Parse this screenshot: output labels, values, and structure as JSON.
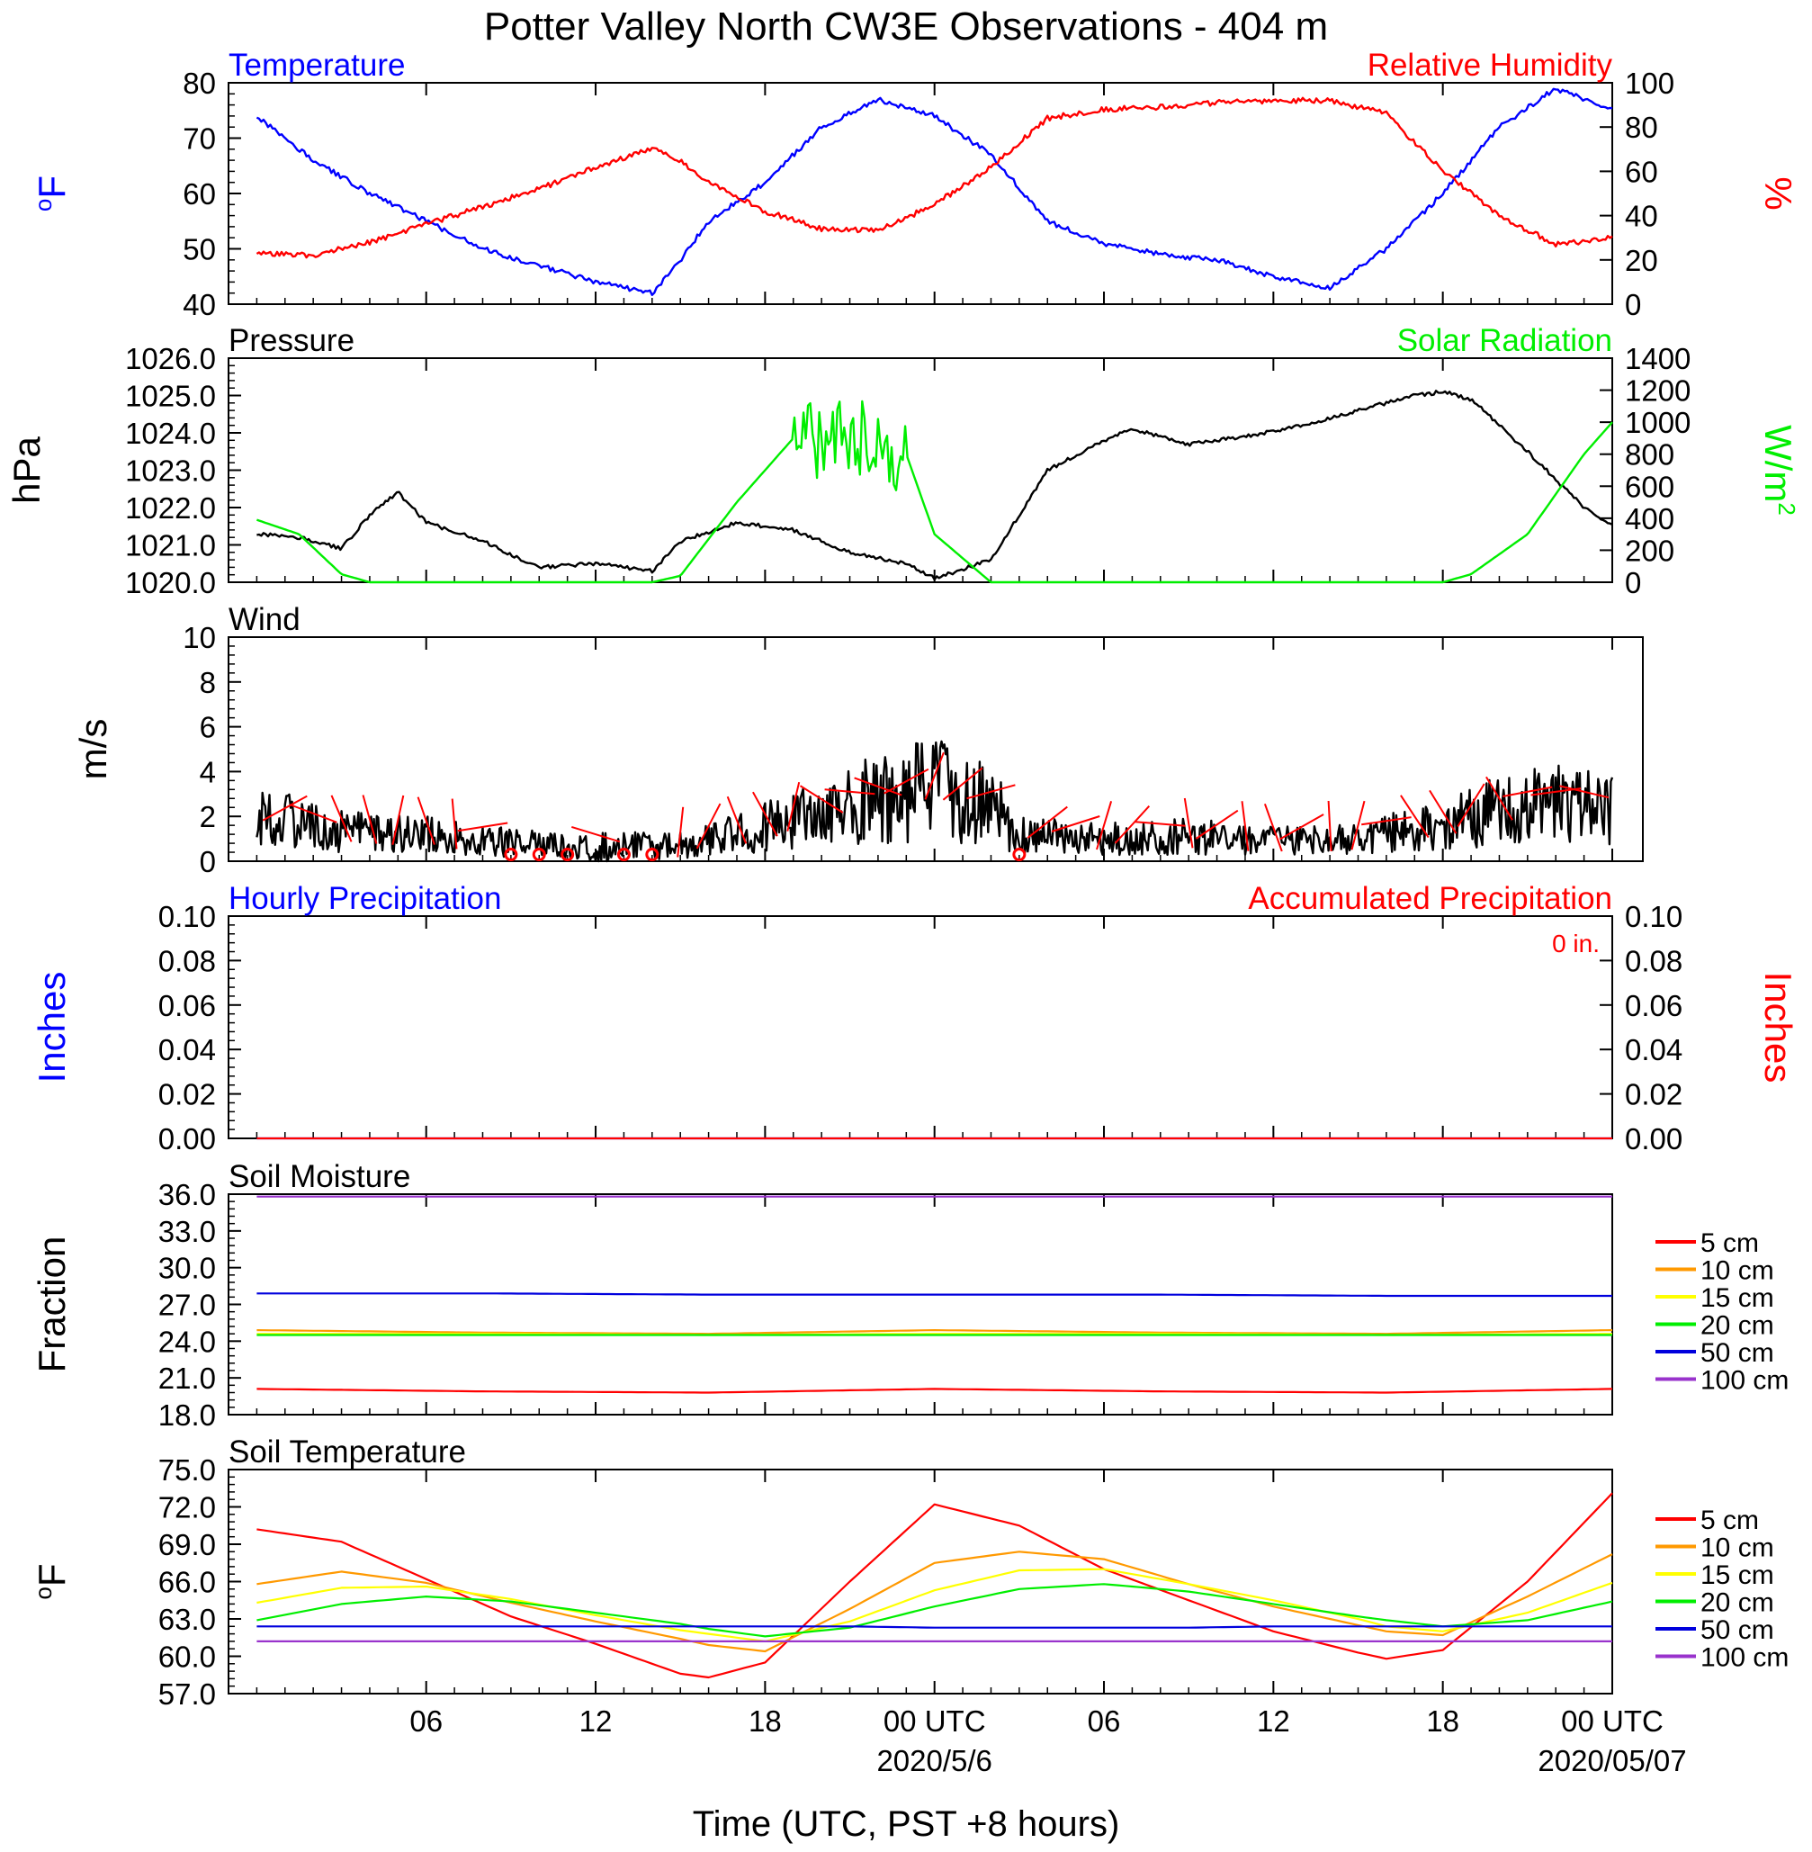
{
  "title": "Potter Valley North CW3E Observations - 404 m",
  "xlabel": "Time (UTC, PST +8 hours)",
  "x_ticks": [
    {
      "hour": 6,
      "label": "06",
      "date": ""
    },
    {
      "hour": 12,
      "label": "12",
      "date": ""
    },
    {
      "hour": 18,
      "label": "18",
      "date": ""
    },
    {
      "hour": 24,
      "label": "00 UTC",
      "date": "2020/5/6"
    },
    {
      "hour": 30,
      "label": "06",
      "date": ""
    },
    {
      "hour": 36,
      "label": "12",
      "date": ""
    },
    {
      "hour": 42,
      "label": "18",
      "date": ""
    },
    {
      "hour": 48,
      "label": "00 UTC",
      "date": "2020/05/07"
    }
  ],
  "colors": {
    "temperature": "#0000ff",
    "humidity": "#ff0000",
    "pressure": "#000000",
    "solar": "#00ee00",
    "wind": "#000000",
    "barbs": "#ff0000",
    "precip_hourly": "#0000ff",
    "precip_accum": "#ff0000",
    "d5": "#ff0000",
    "d10": "#ff9900",
    "d15": "#ffff00",
    "d20": "#00ee00",
    "d50": "#0000dd",
    "d100": "#9933cc"
  },
  "legend": [
    "5 cm",
    "10 cm",
    "15 cm",
    "20 cm",
    "50 cm",
    "100 cm"
  ],
  "chart_data": [
    {
      "type": "line",
      "title_left": "Temperature",
      "title_right": "Relative Humidity",
      "ylabel_left": "oF",
      "ylabel_right": "%",
      "ylim_left": [
        40,
        80
      ],
      "ylim_right": [
        0,
        100
      ],
      "yticks_left": [
        "40",
        "50",
        "60",
        "70",
        "80"
      ],
      "yticks_right": [
        "0",
        "20",
        "40",
        "60",
        "80",
        "100"
      ],
      "x_hours": [
        0,
        2,
        4,
        6,
        8,
        10,
        12,
        14,
        15,
        16,
        18,
        20,
        22,
        24,
        26,
        28,
        30,
        32,
        34,
        36,
        38,
        40,
        42,
        44,
        46,
        48
      ],
      "series": [
        {
          "name": "Temperature",
          "axis": "left",
          "values": [
            74,
            66,
            60,
            55,
            50,
            47,
            44,
            42,
            48,
            55,
            62,
            72,
            77,
            74,
            67,
            55,
            51,
            49,
            48,
            45,
            43,
            50,
            60,
            72,
            79,
            75
          ]
        },
        {
          "name": "Relative Humidity",
          "axis": "right",
          "values": [
            23,
            22,
            28,
            36,
            44,
            52,
            62,
            70,
            65,
            55,
            42,
            34,
            33,
            45,
            62,
            84,
            88,
            89,
            91,
            92,
            92,
            86,
            60,
            40,
            27,
            30
          ]
        }
      ]
    },
    {
      "type": "line",
      "title_left": "Pressure",
      "title_right": "Solar Radiation",
      "ylabel_left": "hPa",
      "ylabel_right": "W/m2",
      "ylim_left": [
        1020.0,
        1026.0
      ],
      "ylim_right": [
        0,
        1400
      ],
      "yticks_left": [
        "1020.0",
        "1021.0",
        "1022.0",
        "1023.0",
        "1024.0",
        "1025.0",
        "1026.0"
      ],
      "yticks_right": [
        "0",
        "200",
        "400",
        "600",
        "800",
        "1000",
        "1200",
        "1400"
      ],
      "x_hours": [
        0,
        1.5,
        3,
        4,
        5,
        6,
        8,
        10,
        12,
        14,
        15,
        17,
        19,
        21,
        23,
        24,
        26,
        28,
        30,
        31,
        33,
        35,
        37,
        39,
        41,
        42,
        43,
        45,
        47,
        48
      ],
      "series": [
        {
          "name": "Pressure",
          "axis": "left",
          "values": [
            1021.3,
            1021.2,
            1020.9,
            1021.8,
            1022.4,
            1021.6,
            1021.1,
            1020.4,
            1020.5,
            1020.3,
            1021.1,
            1021.6,
            1021.4,
            1020.8,
            1020.5,
            1020.1,
            1020.6,
            1023.0,
            1023.8,
            1024.1,
            1023.7,
            1023.9,
            1024.2,
            1024.6,
            1025.0,
            1025.1,
            1024.9,
            1023.5,
            1022.0,
            1021.5
          ]
        },
        {
          "name": "Solar Radiation",
          "axis": "right",
          "values": [
            390,
            300,
            50,
            0,
            0,
            0,
            0,
            0,
            0,
            0,
            40,
            500,
            900,
            1000,
            800,
            300,
            0,
            0,
            0,
            0,
            0,
            0,
            0,
            0,
            0,
            0,
            50,
            300,
            800,
            1000
          ]
        }
      ]
    },
    {
      "type": "line",
      "title_left": "Wind",
      "ylabel_left": "m/s",
      "ylim_left": [
        0,
        10
      ],
      "yticks_left": [
        "0",
        "2",
        "4",
        "6",
        "8",
        "10"
      ],
      "x_hours": [
        0,
        3,
        6,
        9,
        12,
        15,
        18,
        21,
        24,
        26,
        27,
        30,
        33,
        36,
        39,
        42,
        45,
        48
      ],
      "series": [
        {
          "name": "Wind",
          "axis": "left",
          "values": [
            2.0,
            1.3,
            1.2,
            0.8,
            0.6,
            0.7,
            1.5,
            2.5,
            3.2,
            2.5,
            1.2,
            1.0,
            1.1,
            0.9,
            1.0,
            1.6,
            2.5,
            2.5
          ]
        }
      ],
      "calm_hours": [
        9,
        10,
        11,
        13,
        14,
        27
      ]
    },
    {
      "type": "line",
      "title_left": "Hourly Precipitation",
      "title_right": "Accumulated Precipitation",
      "annotation": "0 in.",
      "ylabel_left": "Inches",
      "ylabel_right": "Inches",
      "ylim_left": [
        0,
        0.1
      ],
      "ylim_right": [
        0,
        0.1
      ],
      "yticks_left": [
        "0.00",
        "0.02",
        "0.04",
        "0.06",
        "0.08",
        "0.10"
      ],
      "yticks_right": [
        "0.00",
        "0.02",
        "0.04",
        "0.06",
        "0.08",
        "0.10"
      ],
      "x_hours": [
        0,
        48
      ],
      "series": [
        {
          "name": "Hourly Precipitation",
          "axis": "left",
          "values": [
            0,
            0
          ]
        },
        {
          "name": "Accumulated Precipitation",
          "axis": "right",
          "values": [
            0,
            0
          ]
        }
      ]
    },
    {
      "type": "line",
      "title_left": "Soil Moisture",
      "ylabel_left": "Fraction",
      "ylim_left": [
        18.0,
        36.0
      ],
      "yticks_left": [
        "18.0",
        "21.0",
        "24.0",
        "27.0",
        "30.0",
        "33.0",
        "36.0"
      ],
      "x_hours": [
        0,
        8,
        16,
        24,
        32,
        40,
        48
      ],
      "series": [
        {
          "name": "5 cm",
          "axis": "left",
          "values": [
            20.1,
            19.9,
            19.8,
            20.1,
            19.9,
            19.8,
            20.1
          ]
        },
        {
          "name": "10 cm",
          "axis": "left",
          "values": [
            24.9,
            24.7,
            24.6,
            24.9,
            24.7,
            24.6,
            24.9
          ]
        },
        {
          "name": "15 cm",
          "axis": "left",
          "values": [
            24.6,
            24.6,
            24.5,
            24.6,
            24.6,
            24.5,
            24.6
          ]
        },
        {
          "name": "20 cm",
          "axis": "left",
          "values": [
            24.5,
            24.5,
            24.5,
            24.5,
            24.5,
            24.5,
            24.5
          ]
        },
        {
          "name": "50 cm",
          "axis": "left",
          "values": [
            27.9,
            27.9,
            27.8,
            27.8,
            27.8,
            27.7,
            27.7
          ]
        },
        {
          "name": "100 cm",
          "axis": "left",
          "values": [
            35.8,
            35.8,
            35.8,
            35.8,
            35.8,
            35.8,
            35.8
          ]
        }
      ]
    },
    {
      "type": "line",
      "title_left": "Soil Temperature",
      "ylabel_left": "oF",
      "ylim_left": [
        57.0,
        75.0
      ],
      "yticks_left": [
        "57.0",
        "60.0",
        "63.0",
        "66.0",
        "69.0",
        "72.0",
        "75.0"
      ],
      "x_hours": [
        0,
        3,
        6,
        9,
        12,
        15,
        16,
        18,
        21,
        24,
        27,
        30,
        33,
        36,
        39,
        40,
        42,
        45,
        48
      ],
      "series": [
        {
          "name": "5 cm",
          "axis": "left",
          "values": [
            70.2,
            69.2,
            66.2,
            63.2,
            61.0,
            58.6,
            58.3,
            59.5,
            66.0,
            72.2,
            70.5,
            67.0,
            64.5,
            62.0,
            60.3,
            59.8,
            60.5,
            66.0,
            73.1
          ]
        },
        {
          "name": "10 cm",
          "axis": "left",
          "values": [
            65.8,
            66.8,
            65.9,
            64.3,
            62.8,
            61.4,
            60.9,
            60.4,
            63.8,
            67.5,
            68.4,
            67.8,
            65.8,
            64.0,
            62.5,
            62.0,
            61.7,
            64.8,
            68.2
          ]
        },
        {
          "name": "15 cm",
          "axis": "left",
          "values": [
            64.3,
            65.5,
            65.6,
            64.6,
            63.3,
            62.1,
            61.8,
            61.2,
            62.8,
            65.3,
            66.9,
            67.0,
            65.8,
            64.5,
            63.0,
            62.4,
            62.0,
            63.5,
            65.9
          ]
        },
        {
          "name": "20 cm",
          "axis": "left",
          "values": [
            62.9,
            64.2,
            64.8,
            64.4,
            63.5,
            62.6,
            62.2,
            61.6,
            62.3,
            64.0,
            65.4,
            65.8,
            65.2,
            64.2,
            63.2,
            62.9,
            62.4,
            62.9,
            64.4
          ]
        },
        {
          "name": "50 cm",
          "axis": "left",
          "values": [
            62.4,
            62.4,
            62.4,
            62.4,
            62.4,
            62.4,
            62.4,
            62.4,
            62.4,
            62.3,
            62.3,
            62.3,
            62.3,
            62.4,
            62.4,
            62.4,
            62.4,
            62.4,
            62.4
          ]
        },
        {
          "name": "100 cm",
          "axis": "left",
          "values": [
            61.2,
            61.2,
            61.2,
            61.2,
            61.2,
            61.2,
            61.2,
            61.2,
            61.2,
            61.2,
            61.2,
            61.2,
            61.2,
            61.2,
            61.2,
            61.2,
            61.2,
            61.2,
            61.2
          ]
        }
      ]
    }
  ]
}
